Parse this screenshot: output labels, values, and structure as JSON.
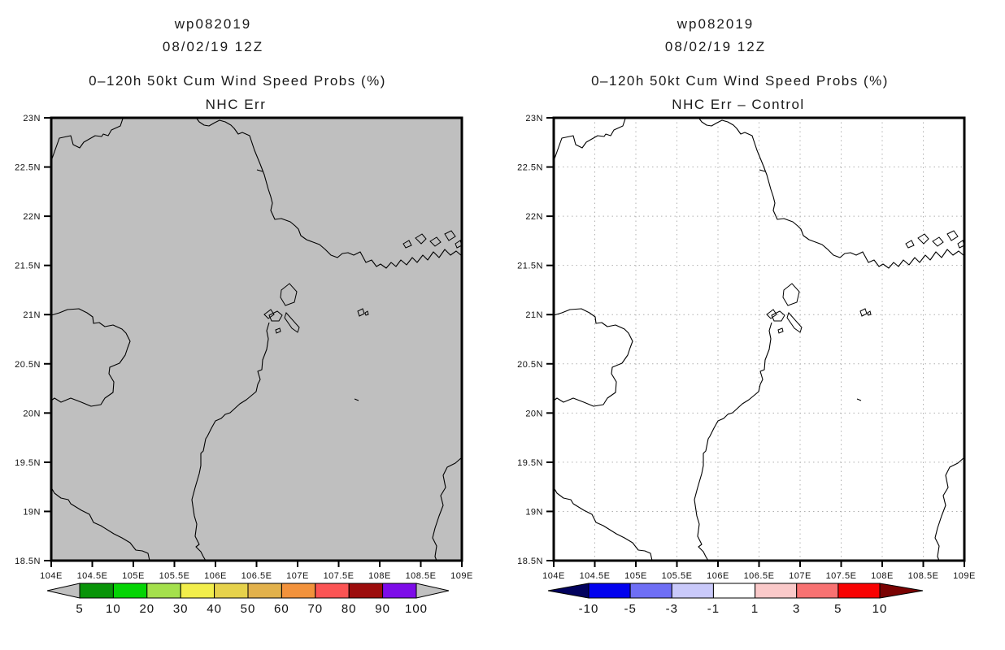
{
  "panels": [
    {
      "title1": "wp082019",
      "title2": "08/02/19 12Z",
      "subtitle": "0–120h 50kt Cum Wind Speed Probs (%)",
      "panel_label": "NHC Err",
      "map_bg": "#bfbfbf",
      "gridlines": false,
      "colorbar": {
        "labels": [
          "5",
          "10",
          "20",
          "30",
          "40",
          "50",
          "60",
          "70",
          "80",
          "90",
          "100"
        ],
        "colors": [
          "#089408",
          "#04d404",
          "#a4e04c",
          "#f2ee4b",
          "#e6d24b",
          "#e2b14b",
          "#f2923c",
          "#fb5454",
          "#9c0c0c",
          "#7d0ce8"
        ],
        "left_arrow": "#c0c0c0",
        "right_arrow": "#c0c0c0"
      }
    },
    {
      "title1": "wp082019",
      "title2": "08/02/19 12Z",
      "subtitle": "0–120h 50kt Cum Wind Speed Probs (%)",
      "panel_label": "NHC Err – Control",
      "map_bg": "#ffffff",
      "gridlines": true,
      "colorbar": {
        "labels": [
          "-10",
          "-5",
          "-3",
          "-1",
          "1",
          "3",
          "5",
          "10"
        ],
        "colors": [
          "#0202ee",
          "#6e6ef5",
          "#c9c9fa",
          "#ffffff",
          "#fac9c9",
          "#f87272",
          "#f80202"
        ],
        "left_arrow": "#02025e",
        "right_arrow": "#7a0202"
      }
    }
  ],
  "axis": {
    "lat_labels": [
      "23N",
      "22.5N",
      "22N",
      "21.5N",
      "21N",
      "20.5N",
      "20N",
      "19.5N",
      "19N",
      "18.5N"
    ],
    "lon_labels": [
      "104E",
      "104.5E",
      "105E",
      "105.5E",
      "106E",
      "106.5E",
      "107E",
      "107.5E",
      "108E",
      "108.5E",
      "109E"
    ]
  },
  "map": {
    "frame_color": "#000000",
    "coast_color": "#000000",
    "gridline_color": "#b0b0b0",
    "coast_paths": [
      "M0,53 L10,25 24,22 27,33 35,37 40,30 54,22 62,23 64,20 70,22 74,15 85,10 88,1",
      "M179,1 L182,5 188,9 194,10 201,6 207,3 214,5 221,9 225,13 230,20 235,18 244,22 250,40 257,57 262,70 267,88 270,97 272,105 270,114 275,125 283,124 294,128 300,133 304,137 307,145 314,150 322,153 330,156 337,162 344,169 352,172 358,167 365,166 372,169 380,165 387,178 394,175 400,183 405,180 412,185 418,178 424,183 430,175 437,181 444,172 450,178 457,169 463,175 470,165 477,172 484,162 491,169 498,164 505,170",
      "M268,252 L265,262 267,272 265,285 260,298 259,310 254,312 257,322 254,328 252,337 240,347 232,352 220,363 214,365 209,370 202,373 197,382 192,392 190,395 187,410 184,413 184,428 182,438 177,455 173,470 176,490 179,500 177,515 182,525 178,528 184,534 187,540 190,545",
      "M0,243 L10,240 20,236 34,235 44,240 51,245 52,253 59,252 66,257 76,255 87,260 92,265 97,275 94,283 91,292 84,302 72,307 71,315 77,325 76,338 66,345 61,353 49,355 37,350 24,345 12,350 4,345 0,348",
      "M0,455 L4,462 12,468 21,470 24,475 37,483 47,488 52,498 61,502 77,512 87,517 97,523 104,532 112,533 119,536 121,545",
      "M505,418 L497,425 487,430 482,440 485,455 479,465 482,477 477,490 472,505 469,517 474,527 472,540 474,545"
    ],
    "island_paths": [
      "M283,212 L293,204 302,214 299,227 288,231 282,221 Z",
      "M289,240 L305,258 303,264 296,259 287,246 Z",
      "M377,238 L383,235 385,241 379,244 Z",
      "M386,240 L389,238 390,242 387,243 Z",
      "M276,261 L281,259 282,263 277,265 Z",
      "M268,243 L278,238 284,243 280,250 271,250 Z",
      "M262,242 L270,236 274,242 267,247 Z",
      "M448,148 L456,143 461,149 455,155 Z",
      "M466,152 L474,147 479,153 472,158 Z",
      "M484,143 L492,139 497,146 489,151 Z",
      "M497,155 L503,151 505,157 499,160 Z",
      "M433,155 L440,151 443,157 436,160 Z",
      "M373,346 L378,348",
      "M253,64 L260,66"
    ]
  },
  "chart_data": [
    {
      "type": "heatmap",
      "panel": "left",
      "title": "wp082019",
      "init_time": "08/02/19 12Z",
      "subtitle": "0–120h 50kt Cum Wind Speed Probs (%)",
      "variant": "NHC Err",
      "x_axis": {
        "ticks": [
          "104E",
          "104.5E",
          "105E",
          "105.5E",
          "106E",
          "106.5E",
          "107E",
          "107.5E",
          "108E",
          "108.5E",
          "109E"
        ]
      },
      "y_axis": {
        "ticks": [
          "23N",
          "22.5N",
          "22N",
          "21.5N",
          "21N",
          "20.5N",
          "20N",
          "19.5N",
          "19N",
          "18.5N"
        ]
      },
      "legend_position": "bottom",
      "colorbar_levels": [
        5,
        10,
        20,
        30,
        40,
        50,
        60,
        70,
        80,
        90,
        100
      ],
      "colorbar_colors": [
        "#089408",
        "#04d404",
        "#a4e04c",
        "#f2ee4b",
        "#e6d24b",
        "#e2b14b",
        "#f2923c",
        "#fb5454",
        "#9c0c0c",
        "#7d0ce8"
      ],
      "shaded_field": "no values above lowest level; whole domain rendered as uniform gray map background",
      "grid": false
    },
    {
      "type": "heatmap",
      "panel": "right",
      "title": "wp082019",
      "init_time": "08/02/19 12Z",
      "subtitle": "0–120h 50kt Cum Wind Speed Probs (%)",
      "variant": "NHC Err – Control",
      "x_axis": {
        "ticks": [
          "104E",
          "104.5E",
          "105E",
          "105.5E",
          "106E",
          "106.5E",
          "107E",
          "107.5E",
          "108E",
          "108.5E",
          "109E"
        ]
      },
      "y_axis": {
        "ticks": [
          "23N",
          "22.5N",
          "22N",
          "21.5N",
          "21N",
          "20.5N",
          "20N",
          "19.5N",
          "19N",
          "18.5N"
        ]
      },
      "legend_position": "bottom",
      "colorbar_levels": [
        -10,
        -5,
        -3,
        -1,
        1,
        3,
        5,
        10
      ],
      "colorbar_colors": [
        "#0202ee",
        "#6e6ef5",
        "#c9c9fa",
        "#ffffff",
        "#fac9c9",
        "#f87272",
        "#f80202"
      ],
      "shaded_field": "no differences beyond ±1; whole domain rendered as white background with dotted 0.5° graticule",
      "grid": true
    }
  ]
}
